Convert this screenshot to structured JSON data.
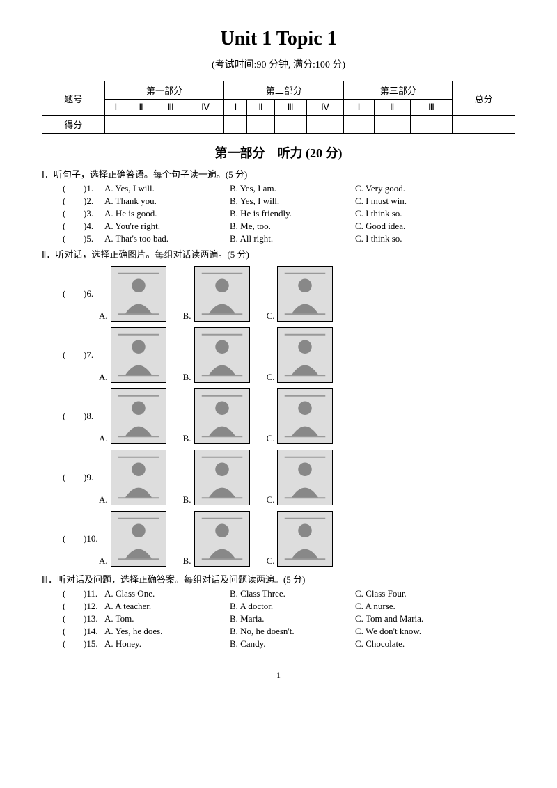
{
  "title": "Unit 1 Topic 1",
  "subtitle": "(考试时间:90 分钟, 满分:100 分)",
  "scoreTable": {
    "row1": {
      "c0": "题号",
      "part1": "第一部分",
      "part2": "第二部分",
      "part3": "第三部分",
      "total": "总分"
    },
    "row2": {
      "p1": [
        "Ⅰ",
        "Ⅱ",
        "Ⅲ",
        "Ⅳ"
      ],
      "p2": [
        "Ⅰ",
        "Ⅱ",
        "Ⅲ",
        "Ⅳ"
      ],
      "p3": [
        "Ⅰ",
        "Ⅱ",
        "Ⅲ"
      ]
    },
    "row3": {
      "c0": "得分"
    }
  },
  "section1": {
    "header": "第一部分　听力 (20 分)",
    "s1": {
      "instruction": "Ⅰ．听句子，选择正确答语。每个句子读一遍。(5 分)",
      "q": [
        {
          "n": "1.",
          "a": "A. Yes, I will.",
          "b": "B. Yes, I am.",
          "c": "C. Very good."
        },
        {
          "n": "2.",
          "a": "A. Thank you.",
          "b": "B. Yes, I will.",
          "c": "C. I must win."
        },
        {
          "n": "3.",
          "a": "A. He is good.",
          "b": "B. He is friendly.",
          "c": "C. I think so."
        },
        {
          "n": "4.",
          "a": "A. You're right.",
          "b": "B. Me, too.",
          "c": "C. Good idea."
        },
        {
          "n": "5.",
          "a": "A. That's too bad.",
          "b": "B. All right.",
          "c": "C. I think so."
        }
      ]
    },
    "s2": {
      "instruction": "Ⅱ．听对话，选择正确图片。每组对话读两遍。(5 分)",
      "q": [
        {
          "n": "6.",
          "labels": [
            "A.",
            "B.",
            "C."
          ]
        },
        {
          "n": "7.",
          "labels": [
            "A.",
            "B.",
            "C."
          ]
        },
        {
          "n": "8.",
          "labels": [
            "A.",
            "B.",
            "C."
          ]
        },
        {
          "n": "9.",
          "labels": [
            "A.",
            "B.",
            "C."
          ]
        },
        {
          "n": "10.",
          "labels": [
            "A.",
            "B.",
            "C."
          ]
        }
      ]
    },
    "s3": {
      "instruction": "Ⅲ．听对话及问题，选择正确答案。每组对话及问题读两遍。(5 分)",
      "q": [
        {
          "n": "11.",
          "a": "A. Class One.",
          "b": "B. Class Three.",
          "c": "C. Class Four."
        },
        {
          "n": "12.",
          "a": "A. A teacher.",
          "b": "B. A doctor.",
          "c": "C. A nurse."
        },
        {
          "n": "13.",
          "a": "A. Tom.",
          "b": "B. Maria.",
          "c": "C. Tom and Maria."
        },
        {
          "n": "14.",
          "a": "A. Yes, he does.",
          "b": "B. No, he doesn't.",
          "c": "C. We don't know."
        },
        {
          "n": "15.",
          "a": "A. Honey.",
          "b": "B. Candy.",
          "c": "C. Chocolate."
        }
      ]
    }
  },
  "pagenum": "1",
  "paren": {
    "open": "(",
    "close": ")"
  }
}
